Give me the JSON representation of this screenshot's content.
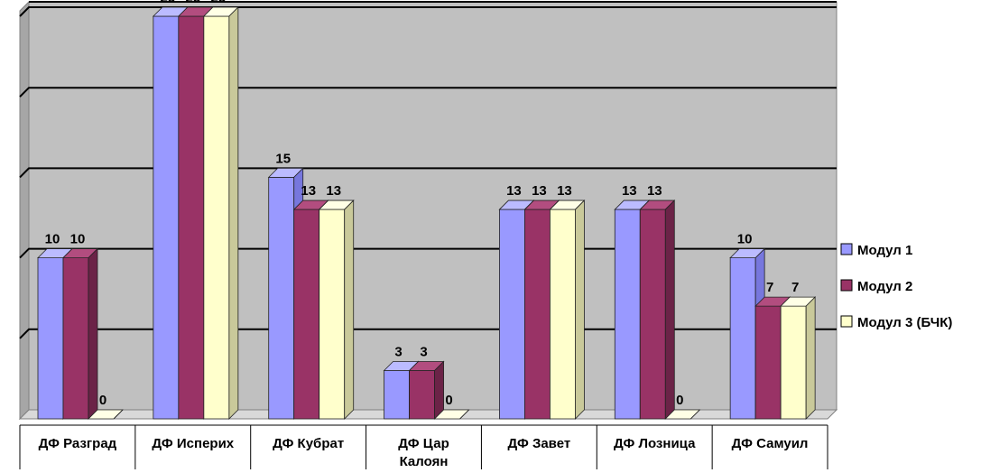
{
  "chart_data": {
    "type": "bar",
    "title": "",
    "xlabel": "",
    "ylabel": "",
    "ylim": [
      0,
      25
    ],
    "grid": true,
    "legend_position": "right",
    "categories": [
      [
        "ДФ Разград"
      ],
      [
        "ДФ Исперих"
      ],
      [
        "ДФ Кубрат"
      ],
      [
        "ДФ Цар",
        "Калоян"
      ],
      [
        "ДФ Завет"
      ],
      [
        "ДФ Лозница"
      ],
      [
        "ДФ Самуил"
      ]
    ],
    "series": [
      {
        "name": "Модул 1",
        "values": [
          10,
          25,
          15,
          3,
          13,
          13,
          10
        ],
        "labels": [
          "10",
          "25",
          "15",
          "3",
          "13",
          "13",
          "10"
        ],
        "color": "#9999ff",
        "side": "#7777dd",
        "top": "#bbbbff"
      },
      {
        "name": "Модул 2",
        "values": [
          10,
          25,
          13,
          3,
          13,
          13,
          7
        ],
        "labels": [
          "10",
          "25",
          "13",
          "3",
          "13",
          "13",
          "7"
        ],
        "color": "#993366",
        "side": "#6b2347",
        "top": "#b24d7f"
      },
      {
        "name": "Модул 3 (БЧК)",
        "values": [
          0,
          25,
          13,
          0,
          13,
          0,
          7
        ],
        "labels": [
          "0",
          "25",
          "13",
          "0",
          "13",
          "0",
          "7"
        ],
        "color": "#ffffcc",
        "side": "#c9c99a",
        "top": "#ffffe6"
      }
    ],
    "colors": {
      "wall": "#c0c0c0",
      "floor": "#d9d9d9",
      "gridline": "#000000"
    }
  }
}
